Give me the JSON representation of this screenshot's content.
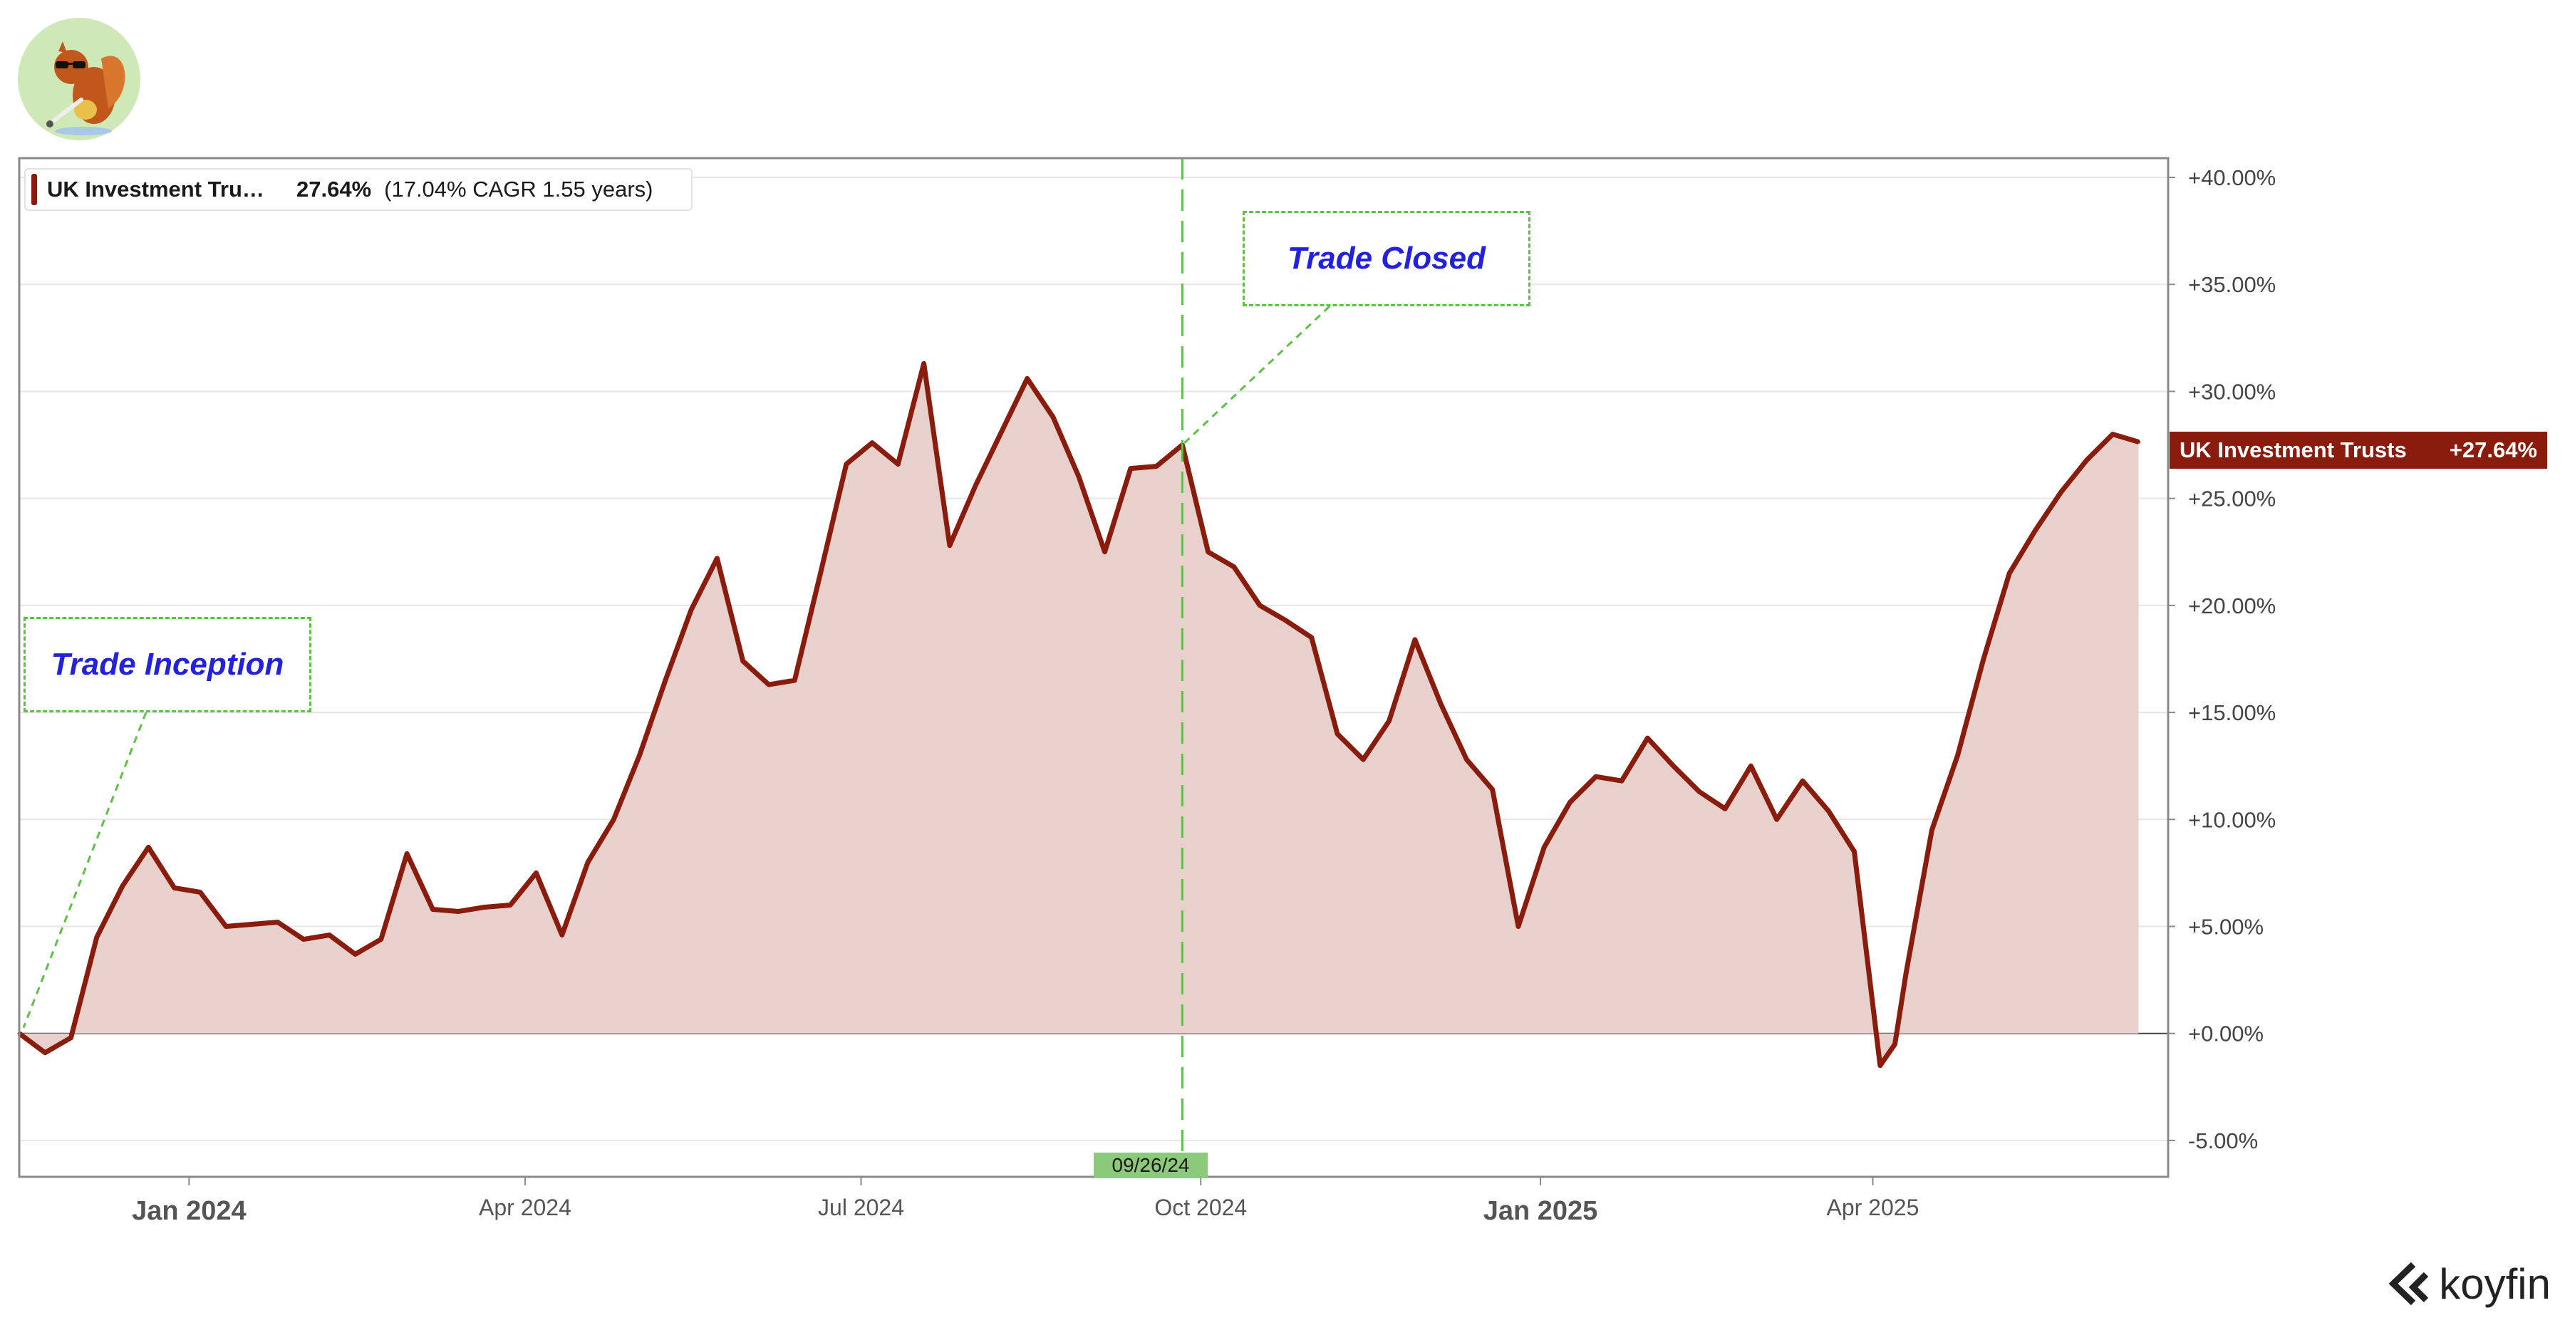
{
  "colors": {
    "series": "#8a1c0d",
    "fill": "#e8d1cd",
    "annotation_border": "#5fc048",
    "annotation_text": "#2222dd",
    "date_marker": "#8cc97a",
    "grid": "#e6e6e6"
  },
  "logo_icon": "squirrel-mascot",
  "brand": {
    "name": "koyfin",
    "icon": "koyfin-chevron-icon"
  },
  "legend": {
    "name": "UK Investment Tru…",
    "return": "27.64%",
    "cagr_text": "(17.04% CAGR 1.55 years)"
  },
  "series_tag": {
    "name": "UK Investment Trusts",
    "value": "+27.64%"
  },
  "annotations": [
    {
      "text": "Trade Inception",
      "date": "2023-11-16",
      "value": 0.0
    },
    {
      "text": "Trade Closed",
      "date": "2024-09-26",
      "value": 27.5
    }
  ],
  "marker": {
    "label": "09/26/24",
    "date": "2024-09-26"
  },
  "chart_data": {
    "type": "area",
    "title": "",
    "xlabel": "",
    "ylabel": "",
    "series": [
      {
        "name": "UK Investment Trusts",
        "x": [
          "2023-11-16",
          "2023-11-23",
          "2023-11-30",
          "2023-12-07",
          "2023-12-14",
          "2023-12-21",
          "2023-12-28",
          "2024-01-04",
          "2024-01-11",
          "2024-01-18",
          "2024-01-25",
          "2024-02-01",
          "2024-02-08",
          "2024-02-15",
          "2024-02-22",
          "2024-02-29",
          "2024-03-07",
          "2024-03-14",
          "2024-03-21",
          "2024-03-28",
          "2024-04-04",
          "2024-04-11",
          "2024-04-18",
          "2024-04-25",
          "2024-05-02",
          "2024-05-09",
          "2024-05-16",
          "2024-05-23",
          "2024-05-30",
          "2024-06-06",
          "2024-06-13",
          "2024-06-20",
          "2024-06-27",
          "2024-07-04",
          "2024-07-11",
          "2024-07-18",
          "2024-07-25",
          "2024-08-01",
          "2024-08-08",
          "2024-08-15",
          "2024-08-22",
          "2024-08-29",
          "2024-09-05",
          "2024-09-12",
          "2024-09-19",
          "2024-09-26",
          "2024-10-03",
          "2024-10-10",
          "2024-10-17",
          "2024-10-24",
          "2024-10-31",
          "2024-11-07",
          "2024-11-14",
          "2024-11-21",
          "2024-11-28",
          "2024-12-05",
          "2024-12-12",
          "2024-12-19",
          "2024-12-26",
          "2025-01-02",
          "2025-01-09",
          "2025-01-16",
          "2025-01-23",
          "2025-01-30",
          "2025-02-06",
          "2025-02-13",
          "2025-02-20",
          "2025-02-27",
          "2025-03-06",
          "2025-03-13",
          "2025-03-20",
          "2025-03-27",
          "2025-04-03",
          "2025-04-07",
          "2025-04-10",
          "2025-04-17",
          "2025-04-24",
          "2025-05-01",
          "2025-05-08",
          "2025-05-15",
          "2025-05-22",
          "2025-05-29",
          "2025-06-05",
          "2025-06-12"
        ],
        "values": [
          0.0,
          -0.9,
          -0.2,
          4.5,
          6.9,
          8.7,
          6.8,
          6.6,
          5.0,
          5.1,
          5.2,
          4.4,
          4.6,
          3.7,
          4.4,
          8.4,
          5.8,
          5.7,
          5.9,
          6.0,
          7.5,
          4.6,
          8.0,
          10.0,
          13.0,
          16.5,
          19.8,
          22.2,
          17.4,
          16.3,
          16.5,
          21.5,
          26.6,
          27.6,
          26.6,
          31.3,
          22.8,
          25.6,
          28.1,
          30.6,
          28.8,
          26.0,
          22.5,
          26.4,
          26.5,
          27.5,
          22.5,
          21.8,
          20.0,
          19.3,
          18.5,
          14.0,
          12.8,
          14.6,
          18.4,
          15.4,
          12.8,
          11.4,
          5.0,
          8.7,
          10.8,
          12.0,
          11.8,
          13.8,
          12.5,
          11.3,
          10.5,
          12.5,
          10.0,
          11.8,
          10.4,
          8.5,
          -1.5,
          -0.5,
          2.8,
          9.5,
          13.0,
          17.5,
          21.5,
          23.5,
          25.3,
          26.8,
          28.0,
          27.64
        ]
      }
    ],
    "ylim": [
      -6.7,
      40.9
    ],
    "yticks": [
      40,
      35,
      30,
      25,
      20,
      15,
      10,
      5,
      0,
      -5
    ],
    "ytick_labels": [
      "+40.00%",
      "+35.00%",
      "+30.00%",
      "+25.00%",
      "+20.00%",
      "+15.00%",
      "+10.00%",
      "+5.00%",
      "+0.00%",
      "-5.00%"
    ],
    "xlim": [
      "2023-11-16",
      "2025-06-20"
    ],
    "xticks": [
      {
        "date": "2024-01-01",
        "label": "Jan 2024",
        "bold": true
      },
      {
        "date": "2024-04-01",
        "label": "Apr 2024",
        "bold": false
      },
      {
        "date": "2024-07-01",
        "label": "Jul 2024",
        "bold": false
      },
      {
        "date": "2024-10-01",
        "label": "Oct 2024",
        "bold": false
      },
      {
        "date": "2025-01-01",
        "label": "Jan 2025",
        "bold": true
      },
      {
        "date": "2025-04-01",
        "label": "Apr 2025",
        "bold": false
      }
    ],
    "grid": true,
    "legend_position": "top-left"
  }
}
